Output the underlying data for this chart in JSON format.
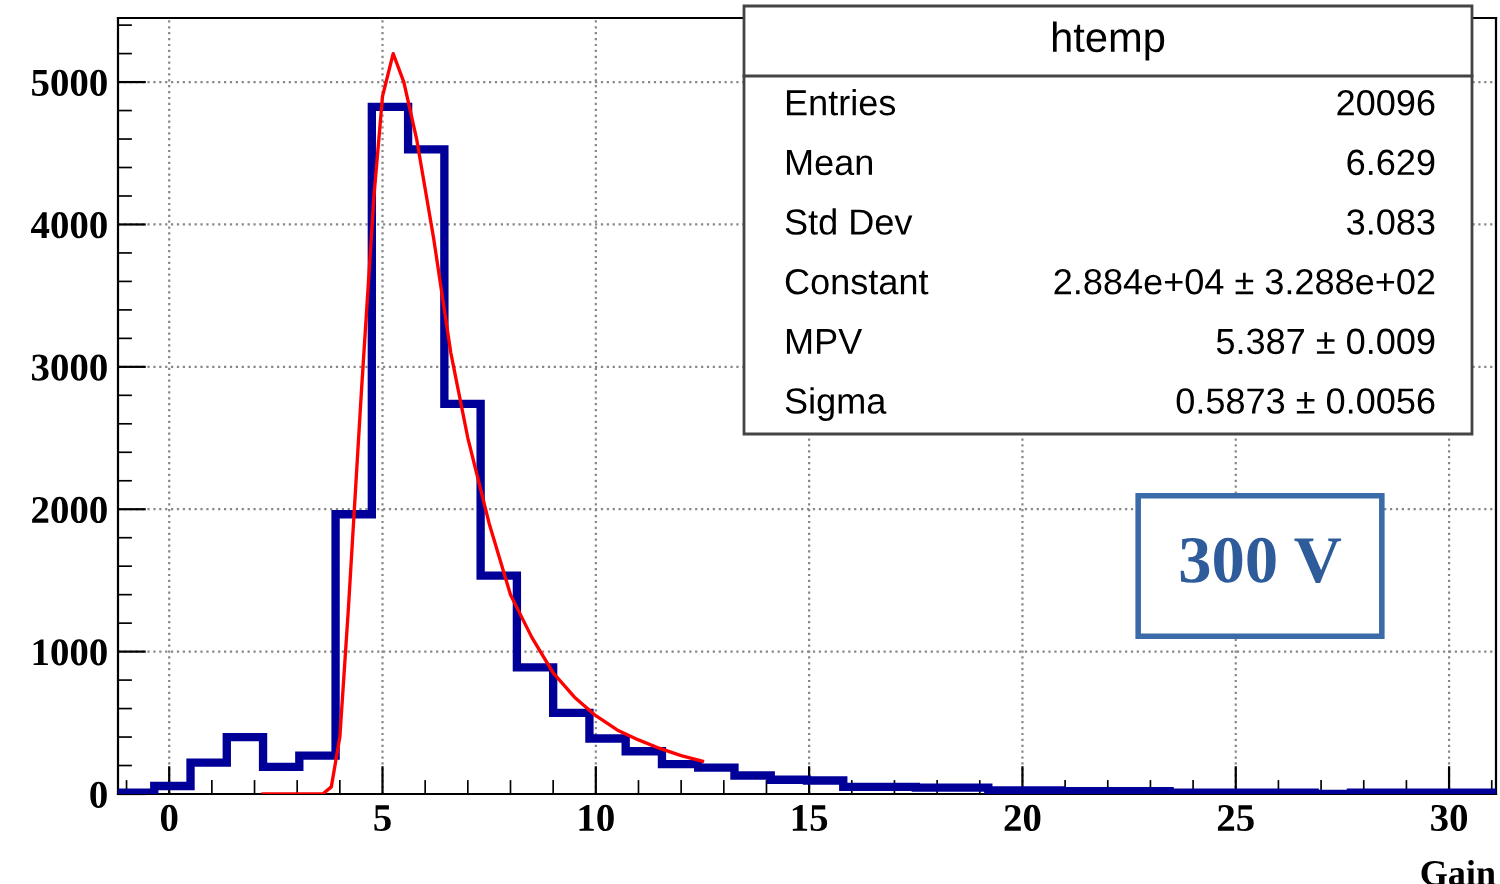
{
  "chart_data": {
    "type": "histogram",
    "xlabel": "Gain",
    "bins": [
      -1.2,
      -0.35,
      0.5,
      1.35,
      2.2,
      3.05,
      3.9,
      4.75,
      5.6,
      6.45,
      7.3,
      8.15,
      9.0,
      9.85,
      10.7,
      11.55,
      12.4,
      13.25,
      14.1,
      14.95,
      15.8,
      16.65,
      17.5,
      18.35,
      19.2,
      20.05,
      20.9,
      21.75,
      22.6,
      23.45,
      24.3,
      25.15,
      26.0,
      26.85,
      27.7,
      28.55,
      29.4,
      30.25,
      31.1
    ],
    "values": [
      10,
      56,
      220,
      400,
      190,
      270,
      1965,
      4826,
      4527,
      2740,
      1534,
      889,
      570,
      390,
      300,
      210,
      185,
      130,
      100,
      95,
      50,
      50,
      45,
      45,
      25,
      25,
      20,
      20,
      20,
      10,
      10,
      10,
      10,
      0,
      10,
      10,
      10,
      10
    ],
    "color": "#000099",
    "series": [
      {
        "type": "line",
        "color": "#ff0000",
        "x": [
          2.2,
          3.6,
          3.8,
          4.0,
          4.2,
          4.5,
          4.8,
          5.0,
          5.25,
          5.5,
          5.8,
          6.2,
          6.6,
          7.0,
          7.5,
          8.0,
          8.5,
          9.0,
          9.5,
          10.0,
          10.5,
          11.0,
          11.5,
          12.0,
          12.5
        ],
        "values": [
          0,
          0,
          50,
          400,
          1300,
          2800,
          4200,
          4900,
          5200,
          5000,
          4600,
          3900,
          3100,
          2500,
          1900,
          1400,
          1100,
          850,
          680,
          550,
          450,
          380,
          320,
          270,
          230
        ]
      }
    ],
    "xlim": [
      -1.2,
      31.1
    ],
    "ylim": [
      0,
      5450
    ],
    "xticks": [
      0,
      5,
      10,
      15,
      20,
      25,
      30
    ],
    "yticks": [
      0,
      1000,
      2000,
      3000,
      4000,
      5000
    ],
    "grid": true,
    "annotations": [
      "htemp",
      "Entries",
      "20096",
      "Mean",
      "6.629",
      "Std Dev",
      "3.083",
      "Constant",
      "2.884e+04 ± 3.288e+02",
      "MPV",
      "5.387 ± 0.009",
      "Sigma",
      "0.5873 ± 0.0056",
      "300 V"
    ]
  }
}
